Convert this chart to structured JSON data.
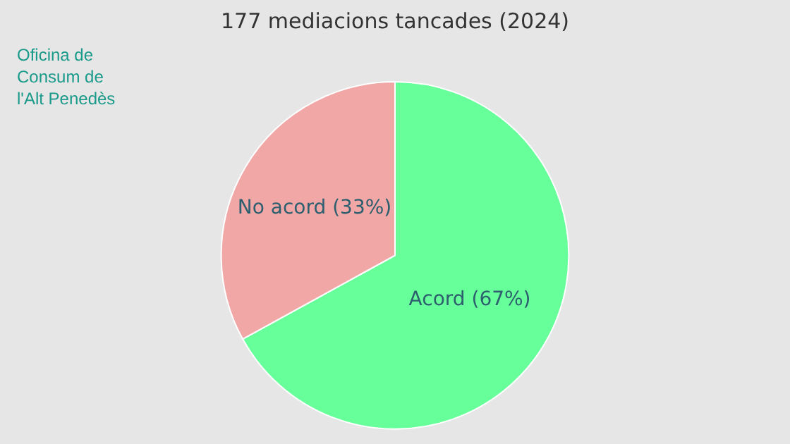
{
  "chart_data": {
    "type": "pie",
    "title": "177 mediacions tancades (2024)",
    "categories": [
      "Acord (67%)",
      "No acord (33%)"
    ],
    "values": [
      67,
      33
    ],
    "colors": [
      "#66ff99",
      "#f2a7a7"
    ],
    "annotations": [
      "Oficina de\nConsum de\nl'Alt Penedès"
    ],
    "legend": false
  }
}
